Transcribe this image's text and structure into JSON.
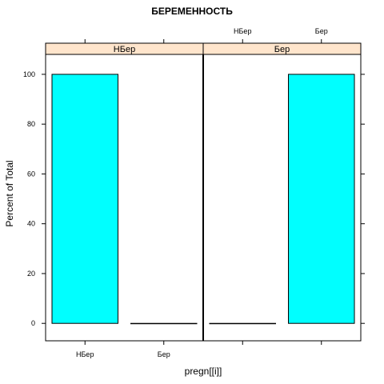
{
  "chart_data": {
    "type": "bar",
    "title": "БЕРЕМЕННОСТЬ",
    "xlabel": "pregn[[i]]",
    "ylabel": "Percent of Total",
    "categories": [
      "НБер",
      "Бер"
    ],
    "ylim": [
      -7,
      108
    ],
    "yticks": [
      0,
      20,
      40,
      60,
      80,
      100
    ],
    "bar_color": "#00ffff",
    "strip_color": "#ffe5cc",
    "panels": [
      {
        "strip": "НБер",
        "values": [
          100,
          0
        ]
      },
      {
        "strip": "Бер",
        "values": [
          0,
          100
        ]
      }
    ]
  }
}
